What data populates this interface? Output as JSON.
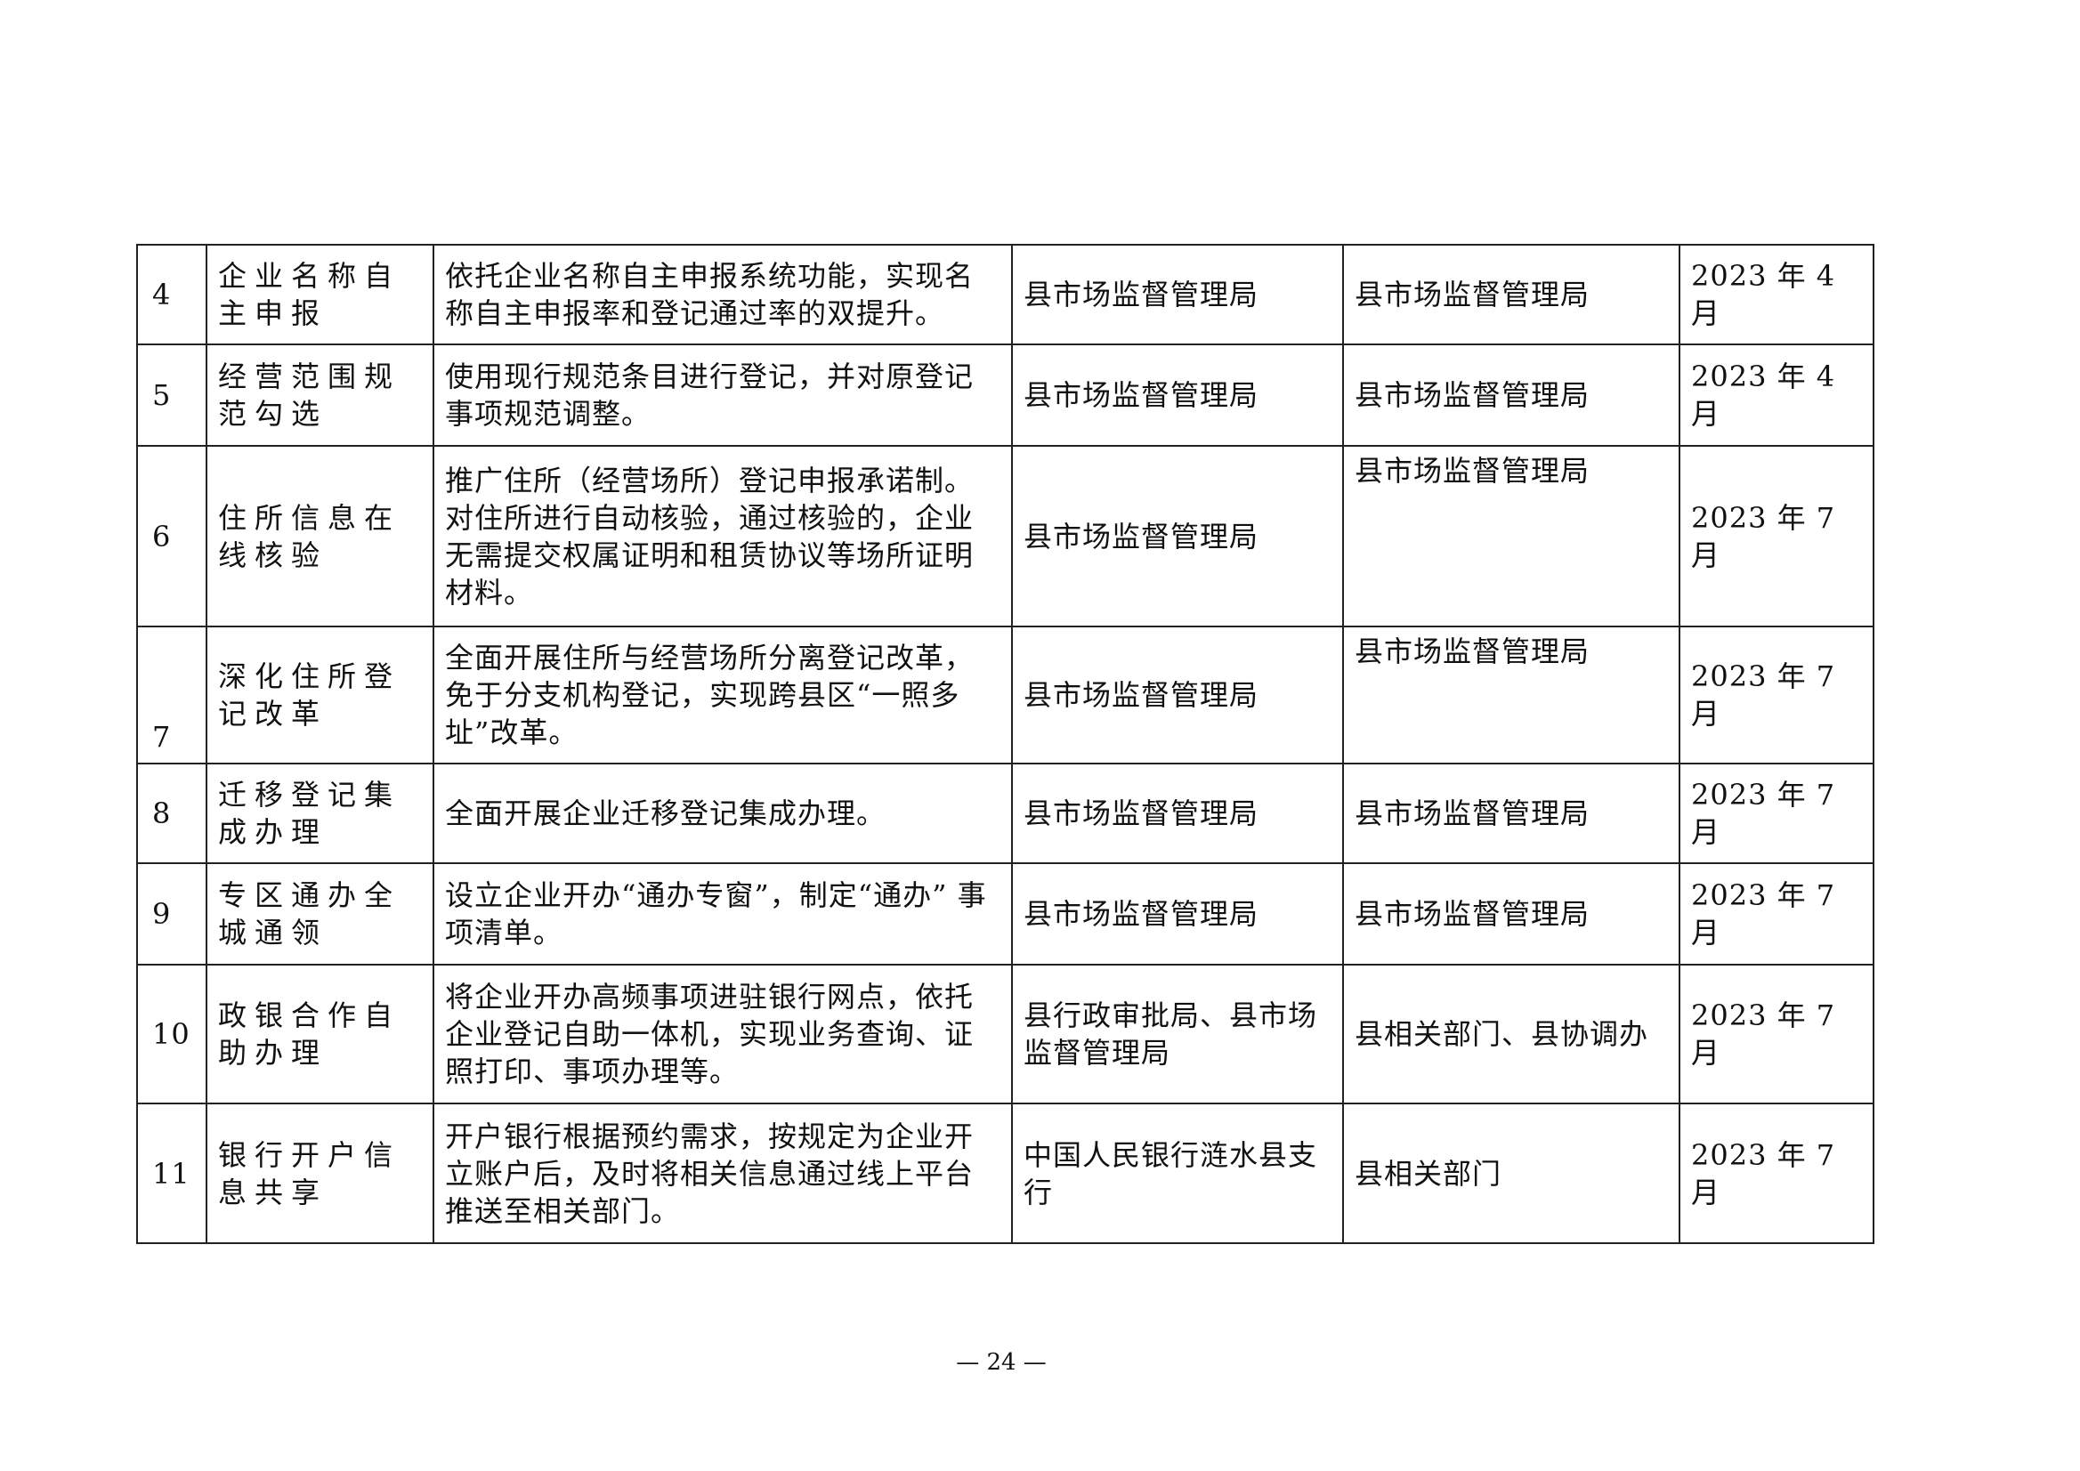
{
  "rows": [
    {
      "no": "4",
      "item": "企业名称自主申报",
      "content": "依托企业名称自主申报系统功能，实现名称自主申报率和登记通过率的双提升。",
      "lead": "县市场监督管理局",
      "resp": "县市场监督管理局",
      "time": "2023 年 4 月"
    },
    {
      "no": "5",
      "item": "经营范围规范勾选",
      "content": "使用现行规范条目进行登记，并对原登记事项规范调整。",
      "lead": "县市场监督管理局",
      "resp": "县市场监督管理局",
      "time": "2023 年 4 月"
    },
    {
      "no": "6",
      "item": "住所信息在线核验",
      "content": "推广住所（经营场所）登记申报承诺制。 对住所进行自动核验，通过核验的，企业无需提交权属证明和租赁协议等场所证明材料。",
      "lead": "县市场监督管理局",
      "resp": "县市场监督管理局",
      "time": "2023 年 7 月"
    },
    {
      "no": "7",
      "item": "深化住所登记改革",
      "content": "全面开展住所与经营场所分离登记改革，免于分支机构登记，实现跨县区“一照多址”改革。",
      "lead": "县市场监督管理局",
      "resp": "县市场监督管理局",
      "time": "2023 年 7 月"
    },
    {
      "no": "8",
      "item": "迁移登记集成办理",
      "content": "全面开展企业迁移登记集成办理。",
      "lead": "县市场监督管理局",
      "resp": "县市场监督管理局",
      "time": "2023 年 7 月"
    },
    {
      "no": "9",
      "item": "专区通办全城通领",
      "content": "设立企业开办“通办专窗”，制定“通办” 事项清单。",
      "lead": "县市场监督管理局",
      "resp": "县市场监督管理局",
      "time": "2023 年 7 月"
    },
    {
      "no": "10",
      "item": "政银合作自助办理",
      "content": "将企业开办高频事项进驻银行网点，依托企业登记自助一体机，实现业务查询、证照打印、事项办理等。",
      "lead": "县行政审批局、县市场监督管理局",
      "resp": "县相关部门、县协调办",
      "time": "2023 年 7 月"
    },
    {
      "no": "11",
      "item": "银行开户信息共享",
      "content": "开户银行根据预约需求，按规定为企业开立账户后，及时将相关信息通过线上平台推送至相关部门。",
      "lead": "中国人民银行涟水县支行",
      "resp": "县相关部门",
      "time": "2023 年 7 月"
    }
  ],
  "page_number": "— 24 —"
}
